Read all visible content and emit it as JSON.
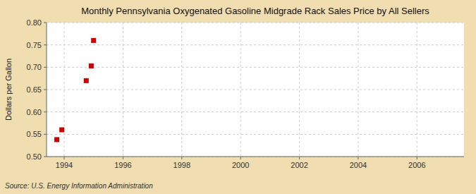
{
  "chart_data": {
    "type": "scatter",
    "title": "Monthly Pennsylvania Oxygenated Gasoline Midgrade Rack Sales Price by All Sellers",
    "y_label": "Dollars per Gallon",
    "source": "Source: U.S. Energy Information Administration",
    "x": [
      1993.75,
      1993.92,
      1994.75,
      1994.92,
      1995.0
    ],
    "values": [
      0.538,
      0.56,
      0.67,
      0.703,
      0.76
    ],
    "color": "#cc0000",
    "marker": "square",
    "xlim": [
      1993.4,
      2007.6
    ],
    "ylim": [
      0.5,
      0.8
    ],
    "xticks": [
      1994,
      1996,
      1998,
      2000,
      2002,
      2004,
      2006
    ],
    "yticks": [
      {
        "value": 0.5,
        "label": "0.50"
      },
      {
        "value": 0.55,
        "label": "0.55"
      },
      {
        "value": 0.6,
        "label": "0.60"
      },
      {
        "value": 0.65,
        "label": "0.65"
      },
      {
        "value": 0.7,
        "label": "0.70"
      },
      {
        "value": 0.75,
        "label": "0.75"
      },
      {
        "value": 0.8,
        "label": "0.80"
      }
    ],
    "grid": true
  }
}
